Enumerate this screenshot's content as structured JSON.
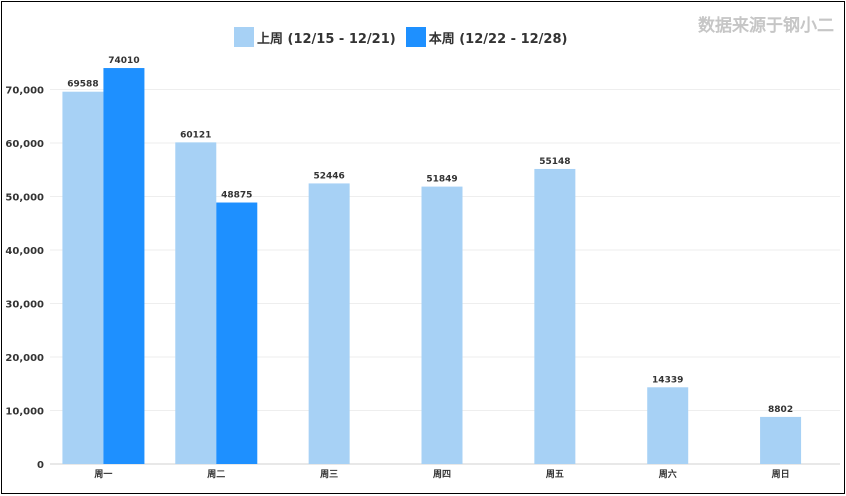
{
  "source_label": "数据来源于钢小二",
  "colors": {
    "series1": "#a7d1f5",
    "series2": "#1e90ff",
    "grid": "#eeeeee",
    "axis": "#333333"
  },
  "chart_data": {
    "type": "bar",
    "categories": [
      "周一",
      "周二",
      "周三",
      "周四",
      "周五",
      "周六",
      "周日"
    ],
    "series": [
      {
        "name": "上周 (12/15 - 12/21)",
        "values": [
          69588,
          60121,
          52446,
          51849,
          55148,
          14339,
          8802
        ]
      },
      {
        "name": "本周 (12/22 - 12/28)",
        "values": [
          74010,
          48875,
          null,
          null,
          null,
          null,
          null
        ]
      }
    ],
    "yticks": [
      "0",
      "10,000",
      "20,000",
      "30,000",
      "40,000",
      "50,000",
      "60,000",
      "70,000"
    ],
    "ylim": [
      0,
      80000
    ],
    "grid": true,
    "legend_position": "top"
  }
}
